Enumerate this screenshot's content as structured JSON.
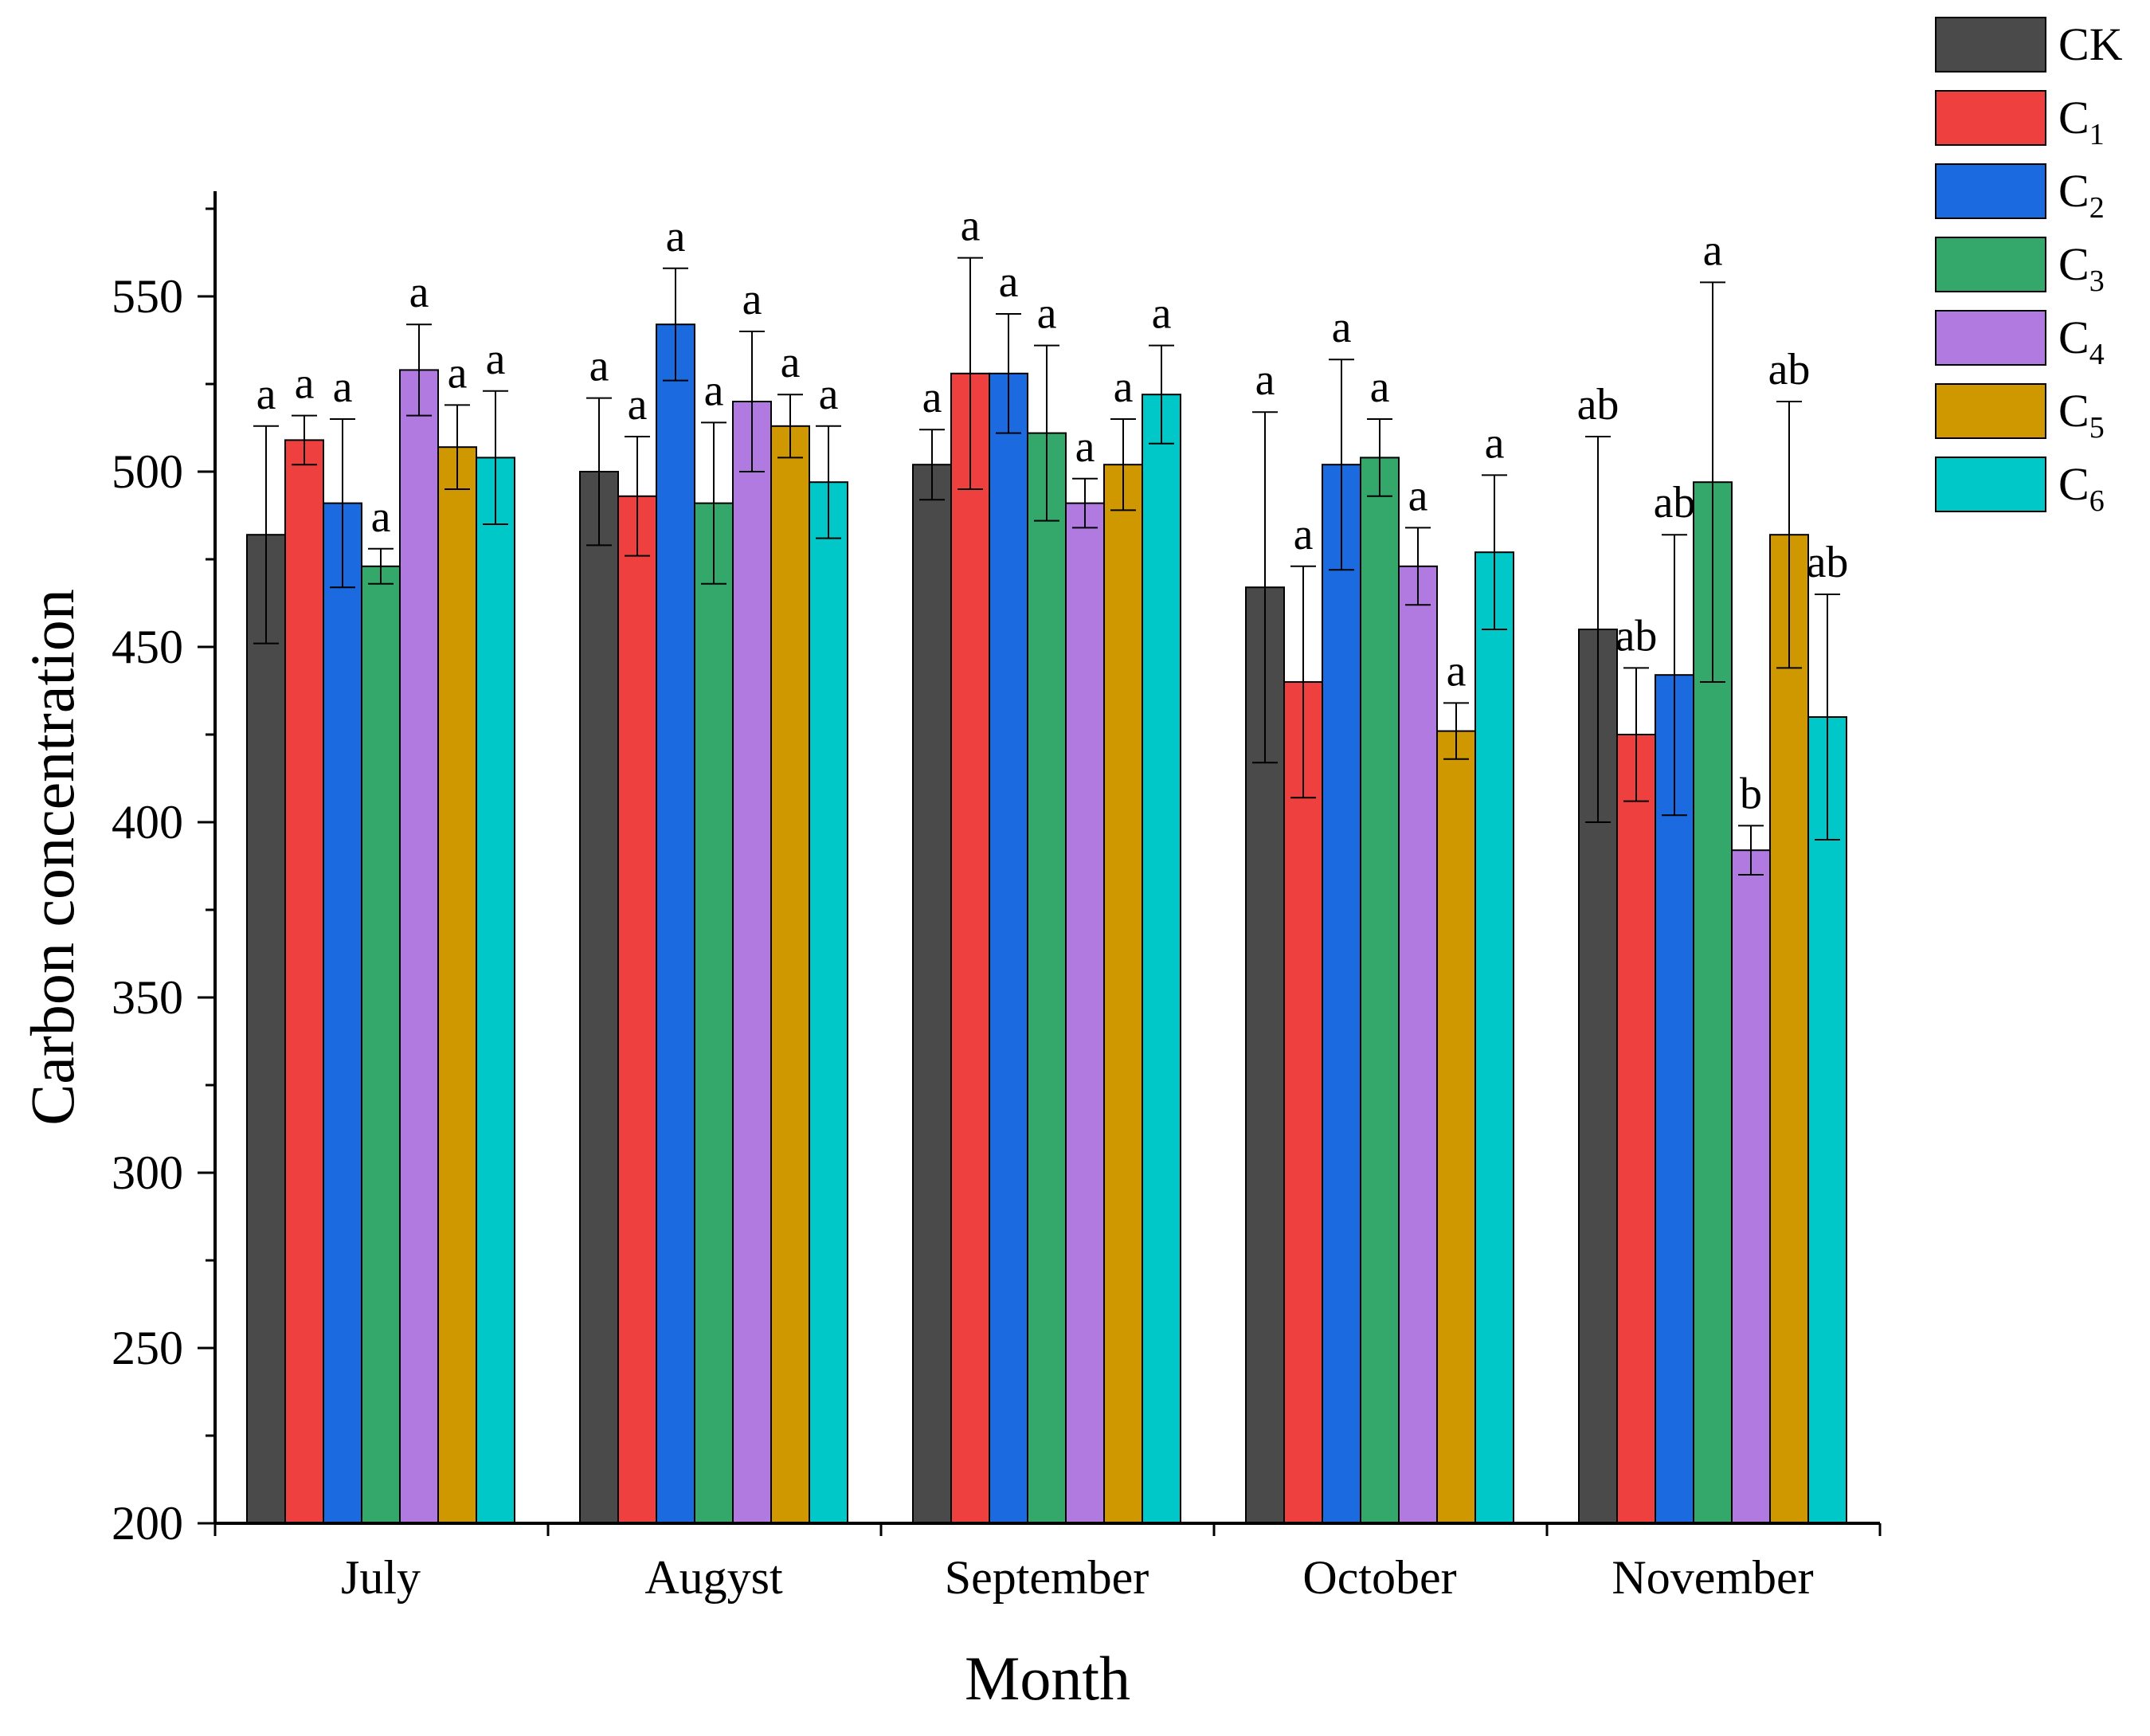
{
  "chart_data": {
    "type": "bar",
    "title": "",
    "xlabel": "Month",
    "ylabel": "Carbon concentration",
    "ylim": [
      200,
      580
    ],
    "yticks": [
      200,
      250,
      300,
      350,
      400,
      450,
      500,
      550
    ],
    "grid": false,
    "legend_position": "top-right, outside plot",
    "categories": [
      "July",
      "Augyst",
      "September",
      "October",
      "November"
    ],
    "series": [
      {
        "name": "CK",
        "base": "C",
        "sub": "K",
        "color": "#4a4a4a",
        "values": [
          482,
          500,
          502,
          467,
          455
        ],
        "errors": [
          31,
          21,
          10,
          50,
          55
        ],
        "labels": [
          "a",
          "a",
          "a",
          "a",
          "ab"
        ]
      },
      {
        "name": "C1",
        "base": "C",
        "sub": "1",
        "color": "#ef4040",
        "values": [
          509,
          493,
          528,
          440,
          425
        ],
        "errors": [
          7,
          17,
          33,
          33,
          19
        ],
        "labels": [
          "a",
          "a",
          "a",
          "a",
          "ab"
        ]
      },
      {
        "name": "C2",
        "base": "C",
        "sub": "2",
        "color": "#1c6ae0",
        "values": [
          491,
          542,
          528,
          502,
          442
        ],
        "errors": [
          24,
          16,
          17,
          30,
          40
        ],
        "labels": [
          "a",
          "a",
          "a",
          "a",
          "ab"
        ]
      },
      {
        "name": "C3",
        "base": "C",
        "sub": "3",
        "color": "#34a76b",
        "values": [
          473,
          491,
          511,
          504,
          497
        ],
        "errors": [
          5,
          23,
          25,
          11,
          57
        ],
        "labels": [
          "a",
          "a",
          "a",
          "a",
          "a"
        ]
      },
      {
        "name": "C4",
        "base": "C",
        "sub": "4",
        "color": "#b07ae0",
        "values": [
          529,
          520,
          491,
          473,
          392
        ],
        "errors": [
          13,
          20,
          7,
          11,
          7
        ],
        "labels": [
          "a",
          "a",
          "a",
          "a",
          "b"
        ]
      },
      {
        "name": "C5",
        "base": "C",
        "sub": "5",
        "color": "#cf9800",
        "values": [
          507,
          513,
          502,
          426,
          482
        ],
        "errors": [
          12,
          9,
          13,
          8,
          38
        ],
        "labels": [
          "a",
          "a",
          "a",
          "a",
          "ab"
        ]
      },
      {
        "name": "C6",
        "base": "C",
        "sub": "6",
        "color": "#00c8c8",
        "values": [
          504,
          497,
          522,
          477,
          430
        ],
        "errors": [
          19,
          16,
          14,
          22,
          35
        ],
        "labels": [
          "a",
          "a",
          "a",
          "a",
          "ab"
        ]
      }
    ]
  }
}
